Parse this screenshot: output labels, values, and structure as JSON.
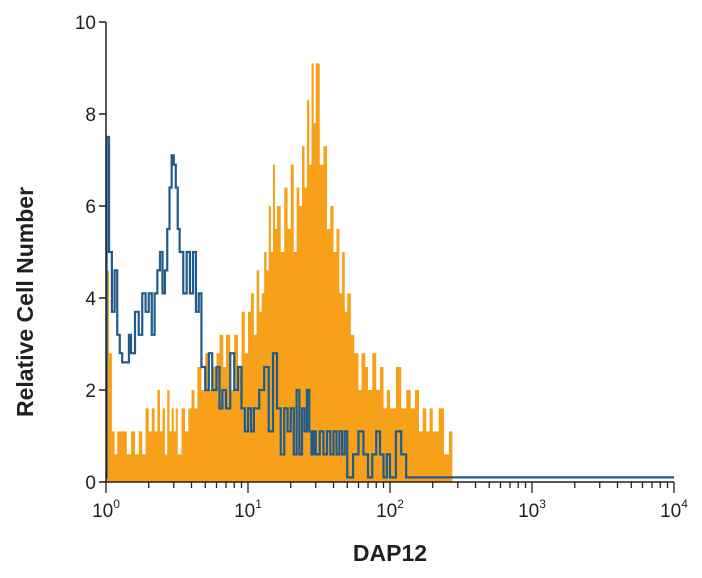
{
  "chart_data": {
    "type": "histogram",
    "xlabel": "DAP12",
    "ylabel": "Relative Cell Number",
    "x_scale": "log",
    "xlim": [
      1,
      10000
    ],
    "ylim": [
      0,
      10
    ],
    "y_ticks": [
      "0",
      "2",
      "4",
      "6",
      "8",
      "10"
    ],
    "x_tick_labels": [
      {
        "base": "10",
        "exp": "0"
      },
      {
        "base": "10",
        "exp": "1"
      },
      {
        "base": "10",
        "exp": "2"
      },
      {
        "base": "10",
        "exp": "3"
      },
      {
        "base": "10",
        "exp": "4"
      }
    ],
    "grid": false,
    "series": [
      {
        "style": "filled",
        "color": "#f7a11a",
        "points": [
          [
            1.0,
            1.1
          ],
          [
            1.02,
            4.6
          ],
          [
            1.05,
            2.8
          ],
          [
            1.1,
            1.1
          ],
          [
            1.15,
            0.6
          ],
          [
            1.2,
            1.1
          ],
          [
            1.3,
            1.1
          ],
          [
            1.4,
            0.6
          ],
          [
            1.5,
            1.1
          ],
          [
            1.6,
            0.6
          ],
          [
            1.7,
            1.1
          ],
          [
            1.8,
            0.6
          ],
          [
            1.9,
            1.6
          ],
          [
            2.0,
            1.1
          ],
          [
            2.1,
            1.6
          ],
          [
            2.2,
            1.1
          ],
          [
            2.3,
            2.0
          ],
          [
            2.4,
            1.1
          ],
          [
            2.5,
            1.6
          ],
          [
            2.6,
            0.6
          ],
          [
            2.7,
            2.0
          ],
          [
            2.8,
            1.1
          ],
          [
            2.9,
            1.6
          ],
          [
            3.0,
            1.1
          ],
          [
            3.1,
            1.6
          ],
          [
            3.2,
            0.6
          ],
          [
            3.4,
            1.6
          ],
          [
            3.6,
            1.1
          ],
          [
            3.8,
            1.6
          ],
          [
            4.0,
            2.0
          ],
          [
            4.2,
            1.6
          ],
          [
            4.4,
            2.5
          ],
          [
            4.7,
            2.0
          ],
          [
            5.0,
            2.8
          ],
          [
            5.3,
            2.0
          ],
          [
            5.6,
            2.5
          ],
          [
            6.0,
            2.8
          ],
          [
            6.3,
            3.2
          ],
          [
            6.7,
            2.5
          ],
          [
            7.0,
            3.2
          ],
          [
            7.5,
            2.0
          ],
          [
            8.0,
            3.2
          ],
          [
            8.5,
            2.5
          ],
          [
            9.0,
            3.7
          ],
          [
            9.5,
            2.8
          ],
          [
            10.0,
            3.7
          ],
          [
            10.5,
            4.1
          ],
          [
            11.0,
            3.2
          ],
          [
            11.5,
            4.6
          ],
          [
            12.0,
            3.7
          ],
          [
            12.5,
            4.1
          ],
          [
            13.0,
            5.0
          ],
          [
            13.5,
            4.6
          ],
          [
            14.0,
            6.0
          ],
          [
            14.5,
            5.0
          ],
          [
            15.0,
            6.9
          ],
          [
            15.5,
            5.5
          ],
          [
            16.0,
            6.0
          ],
          [
            17.0,
            5.0
          ],
          [
            18.0,
            6.4
          ],
          [
            19.0,
            5.5
          ],
          [
            20.0,
            6.9
          ],
          [
            21.0,
            5.0
          ],
          [
            22.0,
            6.4
          ],
          [
            23.0,
            6.0
          ],
          [
            24.0,
            7.3
          ],
          [
            25.0,
            6.4
          ],
          [
            26.0,
            8.3
          ],
          [
            27.0,
            6.9
          ],
          [
            28.0,
            9.1
          ],
          [
            29.0,
            7.8
          ],
          [
            30.0,
            9.1
          ],
          [
            32.0,
            6.9
          ],
          [
            34.0,
            7.3
          ],
          [
            36.0,
            5.5
          ],
          [
            38.0,
            6.0
          ],
          [
            40.0,
            5.0
          ],
          [
            42.0,
            5.5
          ],
          [
            44.0,
            4.1
          ],
          [
            46.0,
            5.0
          ],
          [
            48.0,
            3.7
          ],
          [
            50.0,
            4.1
          ],
          [
            53.0,
            3.2
          ],
          [
            56.0,
            2.8
          ],
          [
            60.0,
            2.0
          ],
          [
            63.0,
            2.8
          ],
          [
            67.0,
            2.5
          ],
          [
            70.0,
            2.0
          ],
          [
            75.0,
            2.8
          ],
          [
            80.0,
            2.0
          ],
          [
            85.0,
            2.5
          ],
          [
            90.0,
            1.6
          ],
          [
            95.0,
            2.0
          ],
          [
            100.0,
            1.6
          ],
          [
            110.0,
            2.5
          ],
          [
            120.0,
            1.6
          ],
          [
            130.0,
            2.0
          ],
          [
            140.0,
            1.6
          ],
          [
            150.0,
            2.0
          ],
          [
            160.0,
            1.1
          ],
          [
            170.0,
            1.6
          ],
          [
            180.0,
            1.1
          ],
          [
            190.0,
            1.6
          ],
          [
            200.0,
            1.1
          ],
          [
            220.0,
            1.6
          ],
          [
            240.0,
            0.6
          ],
          [
            260.0,
            1.1
          ],
          [
            275.0,
            0.0
          ]
        ]
      },
      {
        "style": "outline",
        "color": "#1f5b8c",
        "points": [
          [
            1.0,
            0.1
          ],
          [
            1.01,
            7.5
          ],
          [
            1.05,
            5.0
          ],
          [
            1.1,
            3.7
          ],
          [
            1.15,
            4.6
          ],
          [
            1.2,
            3.2
          ],
          [
            1.25,
            2.8
          ],
          [
            1.3,
            2.6
          ],
          [
            1.4,
            2.6
          ],
          [
            1.45,
            3.2
          ],
          [
            1.5,
            2.8
          ],
          [
            1.6,
            3.7
          ],
          [
            1.7,
            3.2
          ],
          [
            1.8,
            4.1
          ],
          [
            1.9,
            3.7
          ],
          [
            2.0,
            4.1
          ],
          [
            2.1,
            3.2
          ],
          [
            2.2,
            4.1
          ],
          [
            2.3,
            4.6
          ],
          [
            2.4,
            5.0
          ],
          [
            2.5,
            4.1
          ],
          [
            2.6,
            4.6
          ],
          [
            2.7,
            5.5
          ],
          [
            2.8,
            6.4
          ],
          [
            2.9,
            7.1
          ],
          [
            3.0,
            6.9
          ],
          [
            3.1,
            6.4
          ],
          [
            3.2,
            5.5
          ],
          [
            3.3,
            5.0
          ],
          [
            3.5,
            4.1
          ],
          [
            3.7,
            5.0
          ],
          [
            3.9,
            4.1
          ],
          [
            4.1,
            5.0
          ],
          [
            4.3,
            3.7
          ],
          [
            4.5,
            4.1
          ],
          [
            4.7,
            2.5
          ],
          [
            5.0,
            2.0
          ],
          [
            5.3,
            2.8
          ],
          [
            5.6,
            2.0
          ],
          [
            6.0,
            2.5
          ],
          [
            6.3,
            1.6
          ],
          [
            6.6,
            2.0
          ],
          [
            7.0,
            1.6
          ],
          [
            7.5,
            2.8
          ],
          [
            8.0,
            2.0
          ],
          [
            8.5,
            2.5
          ],
          [
            9.0,
            1.6
          ],
          [
            9.5,
            1.1
          ],
          [
            10.0,
            1.6
          ],
          [
            10.5,
            1.1
          ],
          [
            11.0,
            1.6
          ],
          [
            12.0,
            2.0
          ],
          [
            13.0,
            2.5
          ],
          [
            14.0,
            1.1
          ],
          [
            15.0,
            2.8
          ],
          [
            16.0,
            1.6
          ],
          [
            17.0,
            0.6
          ],
          [
            18.0,
            1.6
          ],
          [
            19.0,
            1.1
          ],
          [
            20.0,
            1.6
          ],
          [
            21.0,
            0.6
          ],
          [
            22.0,
            2.0
          ],
          [
            23.0,
            0.6
          ],
          [
            24.0,
            1.6
          ],
          [
            25.0,
            1.1
          ],
          [
            26.0,
            2.0
          ],
          [
            27.0,
            1.1
          ],
          [
            28.0,
            0.6
          ],
          [
            29.0,
            1.1
          ],
          [
            30.0,
            0.6
          ],
          [
            32.0,
            1.1
          ],
          [
            34.0,
            0.6
          ],
          [
            36.0,
            1.1
          ],
          [
            38.0,
            0.6
          ],
          [
            40.0,
            1.1
          ],
          [
            42.0,
            0.6
          ],
          [
            44.0,
            1.1
          ],
          [
            46.0,
            0.6
          ],
          [
            48.0,
            1.1
          ],
          [
            50.0,
            0.1
          ],
          [
            55.0,
            0.6
          ],
          [
            60.0,
            1.1
          ],
          [
            65.0,
            0.6
          ],
          [
            70.0,
            0.1
          ],
          [
            75.0,
            0.6
          ],
          [
            80.0,
            1.1
          ],
          [
            85.0,
            0.6
          ],
          [
            90.0,
            0.1
          ],
          [
            95.0,
            0.6
          ],
          [
            100.0,
            0.1
          ],
          [
            110.0,
            1.1
          ],
          [
            120.0,
            0.6
          ],
          [
            130.0,
            0.1
          ],
          [
            150.0,
            0.1
          ],
          [
            10000.0,
            0.1
          ]
        ]
      }
    ]
  }
}
